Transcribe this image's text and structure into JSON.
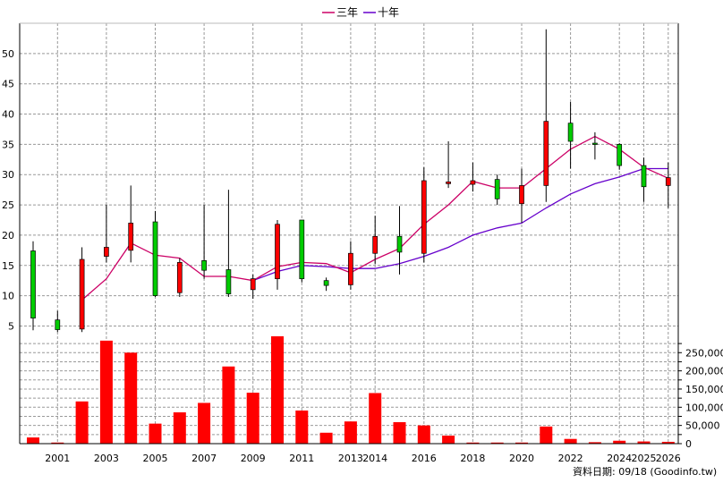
{
  "chart_data": [
    {
      "type": "candlestick",
      "ylim": [
        3,
        55
      ],
      "yticks": [
        5,
        10,
        15,
        20,
        25,
        30,
        35,
        40,
        45,
        50
      ],
      "grid": true,
      "legend_position": "top-center",
      "colors": {
        "up": "#ff0000",
        "down": "#00cc00",
        "ma3": "#cc0066",
        "ma10": "#6600cc"
      },
      "legend": [
        {
          "label": "三年",
          "color": "#cc0066"
        },
        {
          "label": "十年",
          "color": "#6600cc"
        }
      ],
      "x": [
        "2000",
        "2001",
        "2002",
        "2003",
        "2004",
        "2005",
        "2006",
        "2007",
        "2008",
        "2009",
        "2010",
        "2011",
        "2012",
        "2013",
        "2014",
        "2015",
        "2016",
        "2017",
        "2018",
        "2019",
        "2020",
        "2021",
        "2022",
        "2023",
        "2024",
        "2025",
        "2026"
      ],
      "candles": [
        {
          "o": 17.4,
          "h": 19.0,
          "l": 4.3,
          "c": 6.3,
          "dir": "down"
        },
        {
          "o": 6.0,
          "h": 7.5,
          "l": 4.0,
          "c": 4.4,
          "dir": "down"
        },
        {
          "o": 4.5,
          "h": 18.0,
          "l": 4.0,
          "c": 16.0,
          "dir": "up"
        },
        {
          "o": 16.5,
          "h": 25.0,
          "l": 15.5,
          "c": 18.0,
          "dir": "up"
        },
        {
          "o": 17.5,
          "h": 28.2,
          "l": 15.5,
          "c": 22.0,
          "dir": "up"
        },
        {
          "o": 22.2,
          "h": 24.0,
          "l": 9.8,
          "c": 10.0,
          "dir": "down"
        },
        {
          "o": 10.5,
          "h": 16.2,
          "l": 9.8,
          "c": 15.5,
          "dir": "up"
        },
        {
          "o": 15.8,
          "h": 25.0,
          "l": 12.8,
          "c": 14.2,
          "dir": "down"
        },
        {
          "o": 14.3,
          "h": 27.5,
          "l": 9.8,
          "c": 10.3,
          "dir": "down"
        },
        {
          "o": 11.0,
          "h": 13.5,
          "l": 9.5,
          "c": 12.8,
          "dir": "up"
        },
        {
          "o": 12.8,
          "h": 22.5,
          "l": 11.0,
          "c": 21.8,
          "dir": "up"
        },
        {
          "o": 22.5,
          "h": 22.5,
          "l": 12.2,
          "c": 12.8,
          "dir": "down"
        },
        {
          "o": 12.5,
          "h": 13.0,
          "l": 10.8,
          "c": 11.7,
          "dir": "down"
        },
        {
          "o": 11.8,
          "h": 19.0,
          "l": 11.0,
          "c": 17.0,
          "dir": "up"
        },
        {
          "o": 17.0,
          "h": 23.2,
          "l": 15.2,
          "c": 19.8,
          "dir": "up"
        },
        {
          "o": 19.8,
          "h": 24.8,
          "l": 13.5,
          "c": 17.2,
          "dir": "down"
        },
        {
          "o": 17.0,
          "h": 31.2,
          "l": 15.5,
          "c": 29.0,
          "dir": "up"
        },
        {
          "o": 28.5,
          "h": 35.5,
          "l": 27.8,
          "c": 28.8,
          "dir": "up"
        },
        {
          "o": 28.4,
          "h": 32.0,
          "l": 27.2,
          "c": 29.0,
          "dir": "up"
        },
        {
          "o": 29.2,
          "h": 30.0,
          "l": 25.0,
          "c": 26.0,
          "dir": "down"
        },
        {
          "o": 25.2,
          "h": 31.0,
          "l": 22.0,
          "c": 28.2,
          "dir": "up"
        },
        {
          "o": 28.2,
          "h": 54.0,
          "l": 25.5,
          "c": 38.8,
          "dir": "up"
        },
        {
          "o": 38.5,
          "h": 42.0,
          "l": 31.0,
          "c": 35.5,
          "dir": "down"
        },
        {
          "o": 35.2,
          "h": 37.0,
          "l": 32.5,
          "c": 35.0,
          "dir": "down"
        },
        {
          "o": 35.0,
          "h": 35.2,
          "l": 30.8,
          "c": 31.5,
          "dir": "down"
        },
        {
          "o": 31.5,
          "h": 32.8,
          "l": 25.5,
          "c": 28.0,
          "dir": "down"
        },
        {
          "o": 28.2,
          "h": 32.0,
          "l": 24.5,
          "c": 29.5,
          "dir": "up"
        }
      ],
      "ma3": [
        null,
        null,
        9.3,
        12.8,
        18.7,
        16.7,
        16.2,
        13.2,
        13.2,
        12.5,
        14.8,
        15.5,
        15.3,
        13.8,
        16.0,
        17.8,
        21.8,
        25.0,
        28.9,
        27.8,
        27.8,
        31.0,
        34.2,
        36.3,
        34.2,
        31.2,
        29.4
      ],
      "ma10": [
        null,
        null,
        null,
        null,
        null,
        null,
        null,
        null,
        null,
        12.5,
        14.0,
        15.0,
        14.8,
        14.5,
        14.5,
        15.3,
        16.5,
        18.0,
        20.0,
        21.2,
        22.0,
        24.5,
        26.8,
        28.5,
        29.6,
        31.0,
        31.0
      ]
    },
    {
      "type": "bar",
      "ylim": [
        0,
        290000
      ],
      "yticks": [
        0,
        25000,
        50000,
        75000,
        100000,
        125000,
        150000,
        175000,
        200000,
        225000,
        250000,
        275000
      ],
      "ytick_labels": [
        "0",
        "",
        "50,000",
        "",
        "100,000",
        "",
        "150,000",
        "",
        "200,000",
        "",
        "250,000",
        ""
      ],
      "xtick_labels": [
        "2001",
        "2003",
        "2005",
        "2007",
        "2009",
        "2011",
        "2013",
        "2014",
        "2016",
        "2018",
        "2020",
        "2022",
        "2024",
        "2025",
        "2026"
      ],
      "xtick_index": [
        1,
        3,
        5,
        7,
        9,
        11,
        13,
        14,
        16,
        18,
        20,
        22,
        24,
        25,
        26
      ],
      "color": "#ff0000",
      "x": [
        "2000",
        "2001",
        "2002",
        "2003",
        "2004",
        "2005",
        "2006",
        "2007",
        "2008",
        "2009",
        "2010",
        "2011",
        "2012",
        "2013",
        "2014",
        "2015",
        "2016",
        "2017",
        "2018",
        "2019",
        "2020",
        "2021",
        "2022",
        "2023",
        "2024",
        "2025",
        "2026"
      ],
      "values": [
        17000,
        3000,
        116000,
        283000,
        250000,
        55000,
        86000,
        112000,
        212000,
        140000,
        295000,
        91000,
        30000,
        61000,
        139000,
        59000,
        50000,
        22000,
        3000,
        3000,
        3000,
        47000,
        13000,
        4000,
        8000,
        6000,
        5000
      ]
    }
  ],
  "footer": {
    "source_text": "資料日期: 09/18  (Goodinfo.tw)"
  }
}
